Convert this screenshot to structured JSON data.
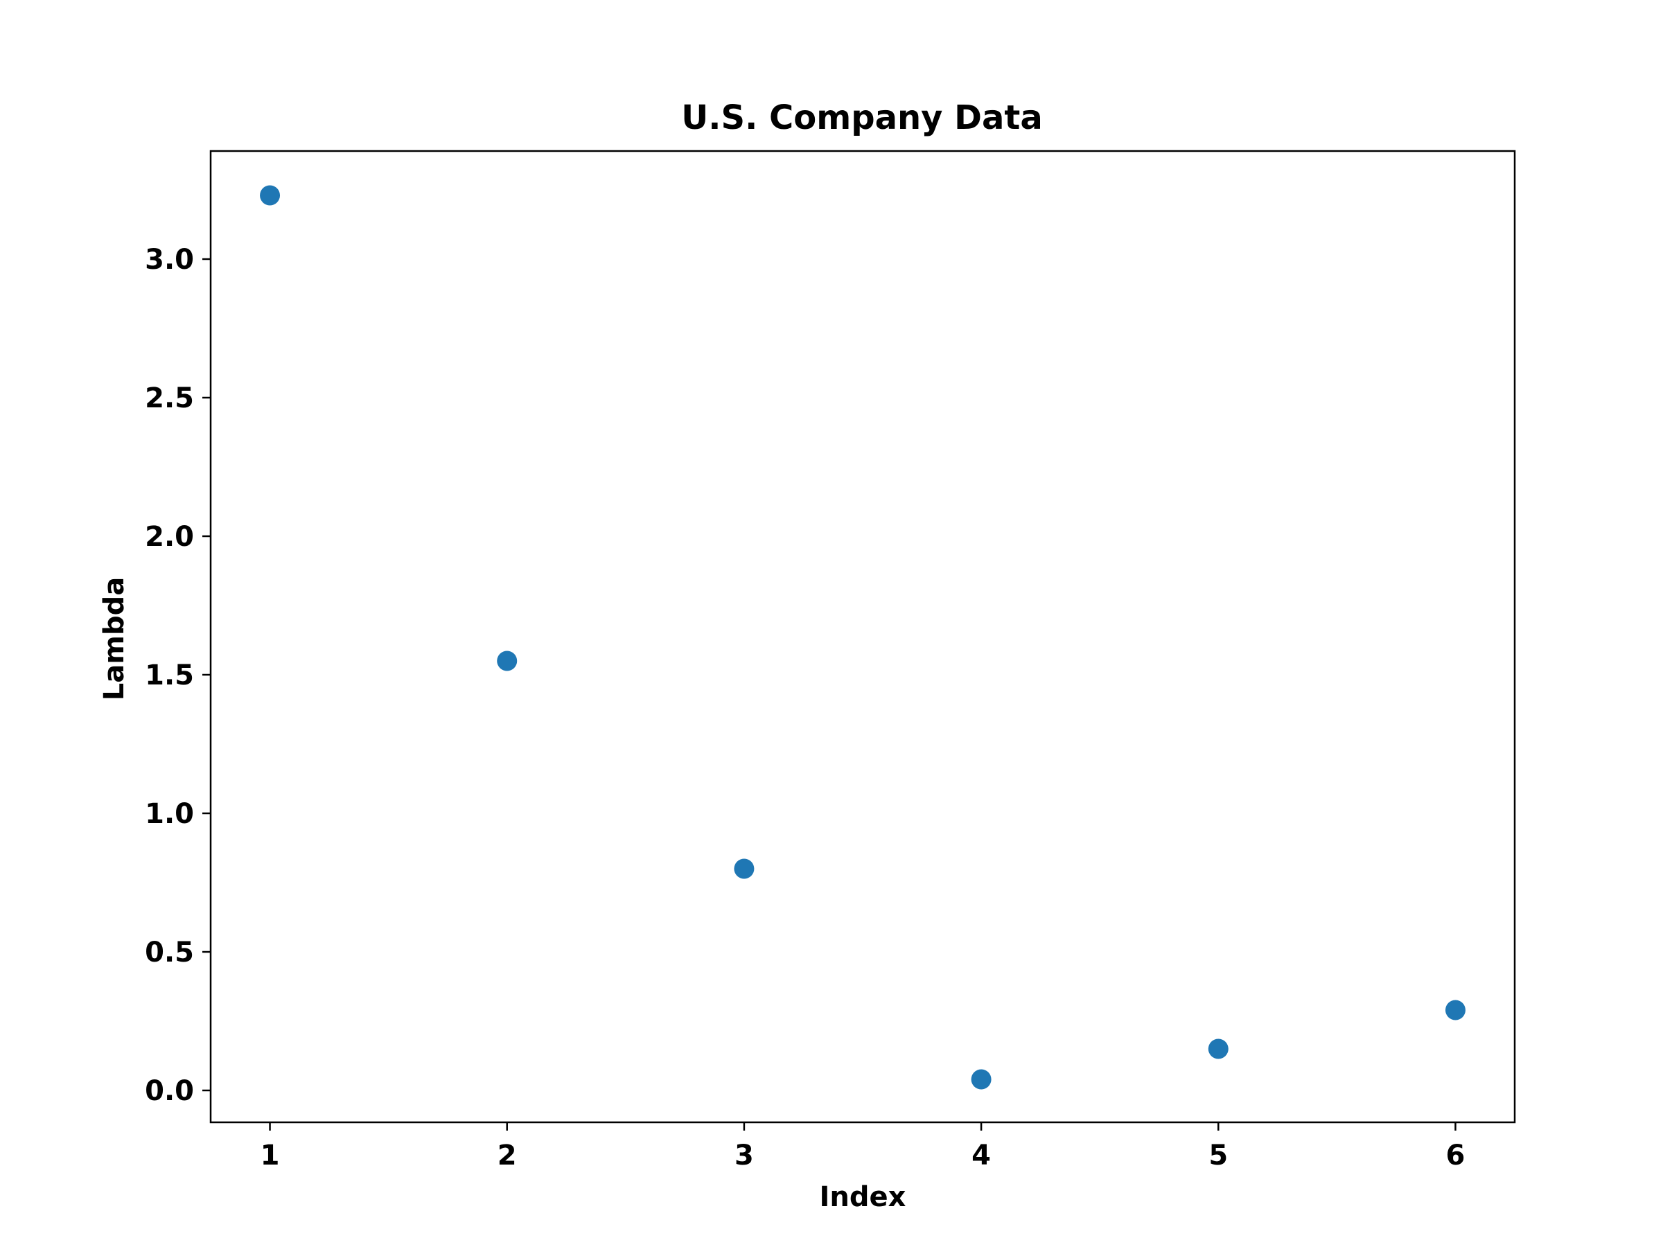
{
  "chart_data": {
    "type": "scatter",
    "title": "U.S. Company Data",
    "xlabel": "Index",
    "ylabel": "Lambda",
    "x": [
      1,
      2,
      3,
      4,
      5,
      6
    ],
    "y": [
      3.23,
      1.55,
      0.8,
      0.04,
      0.15,
      0.29
    ],
    "xlim": [
      0.75,
      6.25
    ],
    "ylim": [
      -0.115,
      3.39
    ],
    "xticks": [
      1,
      2,
      3,
      4,
      5,
      6
    ],
    "xtick_labels": [
      "1",
      "2",
      "3",
      "4",
      "5",
      "6"
    ],
    "yticks": [
      0.0,
      0.5,
      1.0,
      1.5,
      2.0,
      2.5,
      3.0
    ],
    "ytick_labels": [
      "0.0",
      "0.5",
      "1.0",
      "1.5",
      "2.0",
      "2.5",
      "3.0"
    ],
    "grid": false,
    "legend": "none",
    "marker_color": "#1f77b4"
  }
}
